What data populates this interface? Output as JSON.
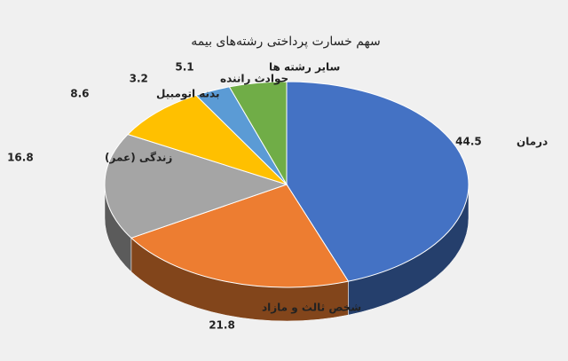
{
  "chart_data": {
    "type": "pie3d",
    "title": "سهم خسارت پرداختی رشته‌های بیمه",
    "categories": [
      "درمان",
      "شخص ثالث و مازاد",
      "زندگی (عمر)",
      "بدنه اتومبیل",
      "حوادث راننده",
      "سایر رشته ها"
    ],
    "values": [
      44.5,
      21.8,
      16.8,
      8.6,
      3.2,
      5.1
    ],
    "colors": [
      "#4472c4",
      "#ed7d31",
      "#a5a5a5",
      "#ffc000",
      "#5b9bd5",
      "#70ad47"
    ]
  }
}
